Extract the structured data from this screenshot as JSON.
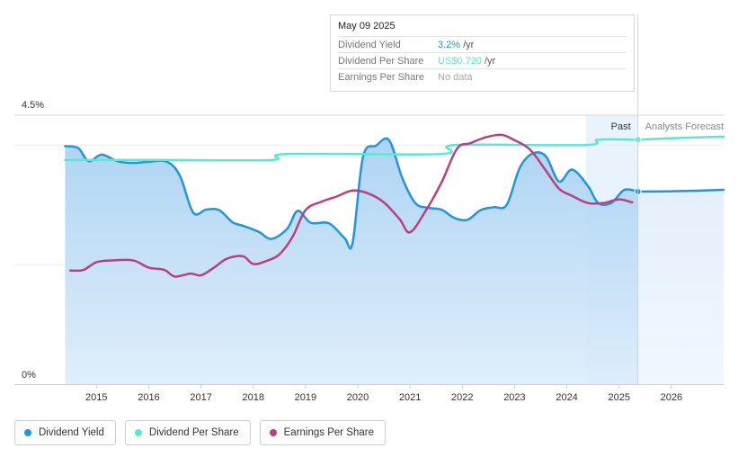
{
  "tooltip": {
    "date": "May 09 2025",
    "rows": [
      {
        "label": "Dividend Yield",
        "value": "3.2%",
        "unit": "/yr",
        "color": "#2394df"
      },
      {
        "label": "Dividend Per Share",
        "value": "US$0.720",
        "unit": "/yr",
        "color": "#5ee6d3"
      },
      {
        "label": "Earnings Per Share",
        "value": "No data",
        "unit": "",
        "color": "#aaaaaa"
      }
    ]
  },
  "regions": {
    "past_label": "Past",
    "forecast_label": "Analysts Forecast",
    "divider_date": 2025.36
  },
  "legend": [
    {
      "label": "Dividend Yield",
      "color": "#2394df"
    },
    {
      "label": "Dividend Per Share",
      "color": "#5ee6d3"
    },
    {
      "label": "Earnings Per Share",
      "color": "#b8407f"
    }
  ],
  "chart_data": {
    "type": "line",
    "y_ticks": [
      "4.5%",
      "0%"
    ],
    "ylim": [
      0,
      4.5
    ],
    "xlim": [
      2013.98,
      2027.0
    ],
    "x_ticks": [
      "2015",
      "2016",
      "2017",
      "2018",
      "2019",
      "2020",
      "2021",
      "2022",
      "2023",
      "2024",
      "2025",
      "2026"
    ],
    "series": [
      {
        "name": "Dividend Yield",
        "color": "#2394df",
        "filled": true,
        "marker_at_end": false,
        "points": [
          [
            2014.4,
            3.98
          ],
          [
            2014.65,
            3.95
          ],
          [
            2014.85,
            3.73
          ],
          [
            2015.1,
            3.84
          ],
          [
            2015.4,
            3.73
          ],
          [
            2015.7,
            3.7
          ],
          [
            2016.0,
            3.72
          ],
          [
            2016.35,
            3.72
          ],
          [
            2016.6,
            3.48
          ],
          [
            2016.85,
            2.87
          ],
          [
            2017.1,
            2.92
          ],
          [
            2017.35,
            2.91
          ],
          [
            2017.6,
            2.71
          ],
          [
            2017.8,
            2.65
          ],
          [
            2018.1,
            2.55
          ],
          [
            2018.35,
            2.43
          ],
          [
            2018.65,
            2.6
          ],
          [
            2018.85,
            2.9
          ],
          [
            2019.1,
            2.7
          ],
          [
            2019.45,
            2.69
          ],
          [
            2019.75,
            2.44
          ],
          [
            2019.9,
            2.36
          ],
          [
            2020.1,
            3.8
          ],
          [
            2020.35,
            3.99
          ],
          [
            2020.6,
            4.08
          ],
          [
            2020.85,
            3.45
          ],
          [
            2021.1,
            3.03
          ],
          [
            2021.35,
            2.95
          ],
          [
            2021.6,
            2.92
          ],
          [
            2021.85,
            2.78
          ],
          [
            2022.1,
            2.75
          ],
          [
            2022.35,
            2.91
          ],
          [
            2022.6,
            2.96
          ],
          [
            2022.85,
            3.0
          ],
          [
            2023.1,
            3.62
          ],
          [
            2023.35,
            3.86
          ],
          [
            2023.6,
            3.81
          ],
          [
            2023.85,
            3.39
          ],
          [
            2024.1,
            3.59
          ],
          [
            2024.4,
            3.32
          ],
          [
            2024.6,
            3.03
          ],
          [
            2024.85,
            3.03
          ],
          [
            2025.1,
            3.25
          ],
          [
            2025.36,
            3.22
          ]
        ]
      },
      {
        "name": "Dividend Per Share",
        "color": "#5ee6d3",
        "filled": false,
        "marker_at_end": true,
        "points": [
          [
            2014.4,
            3.75
          ],
          [
            2016.35,
            3.75
          ],
          [
            2018.35,
            3.75
          ],
          [
            2018.65,
            3.85
          ],
          [
            2021.6,
            3.85
          ],
          [
            2021.85,
            4.0
          ],
          [
            2024.35,
            4.0
          ],
          [
            2024.6,
            4.09
          ],
          [
            2025.36,
            4.09
          ]
        ]
      },
      {
        "name": "Dividend Per Share Forecast",
        "color": "#5ee6d3",
        "filled": false,
        "marker_at_end": false,
        "points": [
          [
            2025.36,
            4.09
          ],
          [
            2026.2,
            4.12
          ],
          [
            2027.0,
            4.14
          ]
        ]
      },
      {
        "name": "Dividend Yield Forecast",
        "color": "#2394df",
        "filled": true,
        "marker_at_end": false,
        "points": [
          [
            2025.36,
            3.22
          ],
          [
            2026.2,
            3.23
          ],
          [
            2027.0,
            3.25
          ]
        ]
      },
      {
        "name": "Earnings Per Share",
        "color": "#b8407f",
        "filled": false,
        "marker_at_end": false,
        "points": [
          [
            2014.5,
            1.9
          ],
          [
            2014.75,
            1.91
          ],
          [
            2015.0,
            2.04
          ],
          [
            2015.3,
            2.07
          ],
          [
            2015.7,
            2.07
          ],
          [
            2016.0,
            1.95
          ],
          [
            2016.3,
            1.91
          ],
          [
            2016.5,
            1.8
          ],
          [
            2016.8,
            1.85
          ],
          [
            2017.0,
            1.82
          ],
          [
            2017.25,
            1.95
          ],
          [
            2017.5,
            2.1
          ],
          [
            2017.8,
            2.14
          ],
          [
            2018.0,
            2.01
          ],
          [
            2018.25,
            2.06
          ],
          [
            2018.5,
            2.17
          ],
          [
            2018.75,
            2.46
          ],
          [
            2019.0,
            2.91
          ],
          [
            2019.3,
            3.05
          ],
          [
            2019.6,
            3.14
          ],
          [
            2019.9,
            3.24
          ],
          [
            2020.2,
            3.19
          ],
          [
            2020.5,
            3.04
          ],
          [
            2020.8,
            2.76
          ],
          [
            2021.0,
            2.54
          ],
          [
            2021.3,
            2.9
          ],
          [
            2021.6,
            3.37
          ],
          [
            2021.9,
            3.94
          ],
          [
            2022.15,
            4.03
          ],
          [
            2022.45,
            4.13
          ],
          [
            2022.75,
            4.17
          ],
          [
            2023.0,
            4.08
          ],
          [
            2023.3,
            3.92
          ],
          [
            2023.6,
            3.57
          ],
          [
            2023.85,
            3.27
          ],
          [
            2024.1,
            3.15
          ],
          [
            2024.4,
            3.03
          ],
          [
            2024.7,
            3.03
          ],
          [
            2025.0,
            3.09
          ],
          [
            2025.25,
            3.04
          ]
        ]
      }
    ]
  }
}
